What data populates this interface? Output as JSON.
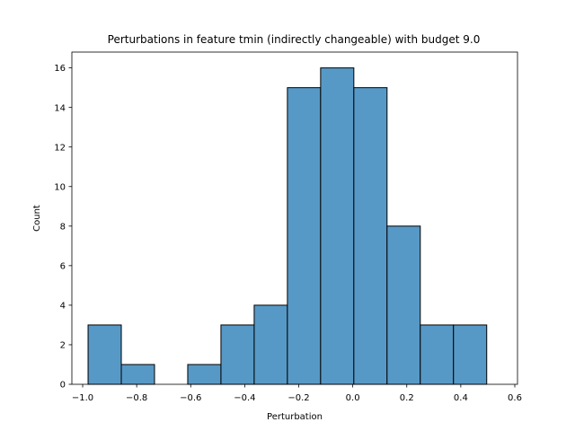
{
  "chart_data": {
    "type": "bar",
    "title": "Perturbations in feature tmin (indirectly changeable) with budget 9.0",
    "xlabel": "Perturbation",
    "ylabel": "Count",
    "xlim": [
      -1.04,
      0.61
    ],
    "ylim": [
      0,
      16.8
    ],
    "grid": false,
    "legend": "none",
    "bar_color": "#5799c6",
    "edge_color": "#000000",
    "bins": [
      {
        "x0": -0.98,
        "x1": -0.857,
        "count": 3
      },
      {
        "x0": -0.857,
        "x1": -0.734,
        "count": 1
      },
      {
        "x0": -0.734,
        "x1": -0.611,
        "count": 0
      },
      {
        "x0": -0.611,
        "x1": -0.488,
        "count": 1
      },
      {
        "x0": -0.488,
        "x1": -0.365,
        "count": 3
      },
      {
        "x0": -0.365,
        "x1": -0.242,
        "count": 4
      },
      {
        "x0": -0.242,
        "x1": -0.119,
        "count": 15
      },
      {
        "x0": -0.119,
        "x1": 0.004,
        "count": 16
      },
      {
        "x0": 0.004,
        "x1": 0.127,
        "count": 15
      },
      {
        "x0": 0.127,
        "x1": 0.25,
        "count": 8
      },
      {
        "x0": 0.25,
        "x1": 0.373,
        "count": 3
      },
      {
        "x0": 0.373,
        "x1": 0.496,
        "count": 3
      }
    ],
    "x_ticks": [
      {
        "value": -1.0,
        "label": "−1.0"
      },
      {
        "value": -0.8,
        "label": "−0.8"
      },
      {
        "value": -0.6,
        "label": "−0.6"
      },
      {
        "value": -0.4,
        "label": "−0.4"
      },
      {
        "value": -0.2,
        "label": "−0.2"
      },
      {
        "value": 0.0,
        "label": "0.0"
      },
      {
        "value": 0.2,
        "label": "0.2"
      },
      {
        "value": 0.4,
        "label": "0.4"
      },
      {
        "value": 0.6,
        "label": "0.6"
      }
    ],
    "y_ticks": [
      {
        "value": 0,
        "label": "0"
      },
      {
        "value": 2,
        "label": "2"
      },
      {
        "value": 4,
        "label": "4"
      },
      {
        "value": 6,
        "label": "6"
      },
      {
        "value": 8,
        "label": "8"
      },
      {
        "value": 10,
        "label": "10"
      },
      {
        "value": 12,
        "label": "12"
      },
      {
        "value": 14,
        "label": "14"
      },
      {
        "value": 16,
        "label": "16"
      }
    ]
  }
}
